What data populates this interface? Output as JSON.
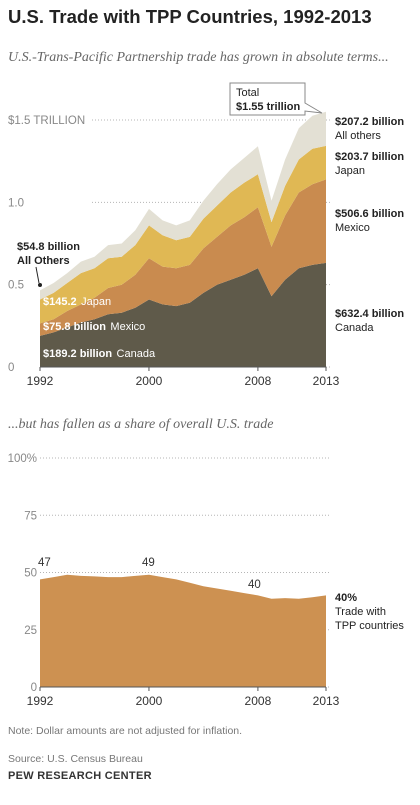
{
  "title": "U.S. Trade with TPP Countries, 1992-2013",
  "subtitle1": "U.S.-Trans-Pacific Partnership trade has grown in absolute terms...",
  "subtitle2": "...but has fallen as a share of overall U.S. trade",
  "note": "Note: Dollar amounts are not adjusted for inflation.",
  "source": "Source: U.S. Census Bureau",
  "brand": "PEW RESEARCH CENTER",
  "colors": {
    "canada": "#5f5a4a",
    "mexico": "#c98b4f",
    "japan": "#e0b854",
    "others": "#e3e0d4",
    "share": "#cd9151",
    "grid": "#b5b5b5"
  },
  "chart_data": [
    {
      "type": "area",
      "stacked": true,
      "x": [
        1992,
        1993,
        1994,
        1995,
        1996,
        1997,
        1998,
        1999,
        2000,
        2001,
        2002,
        2003,
        2004,
        2005,
        2006,
        2007,
        2008,
        2009,
        2010,
        2011,
        2012,
        2013
      ],
      "x_tick_labels": [
        "1992",
        "2000",
        "2008",
        "2013"
      ],
      "y_tick_labels": [
        "$1.5 TRILLION",
        "1.0",
        "0.5",
        "0"
      ],
      "ylim": [
        0,
        1.6
      ],
      "grid": true,
      "series": [
        {
          "name": "Canada",
          "label_value": "$189.2 billion",
          "label_name": "Canada",
          "end_value": "$632.4 billion",
          "end_name": "Canada",
          "values": [
            0.189,
            0.21,
            0.24,
            0.27,
            0.29,
            0.32,
            0.33,
            0.36,
            0.41,
            0.38,
            0.37,
            0.39,
            0.45,
            0.5,
            0.53,
            0.56,
            0.6,
            0.43,
            0.53,
            0.6,
            0.62,
            0.632
          ]
        },
        {
          "name": "Mexico",
          "label_value": "$75.8 billion",
          "label_name": "Mexico",
          "end_value": "$506.6 billion",
          "end_name": "Mexico",
          "values": [
            0.076,
            0.08,
            0.1,
            0.11,
            0.13,
            0.16,
            0.17,
            0.2,
            0.25,
            0.23,
            0.23,
            0.23,
            0.27,
            0.29,
            0.33,
            0.35,
            0.37,
            0.3,
            0.39,
            0.46,
            0.49,
            0.507
          ]
        },
        {
          "name": "Japan",
          "label_value": "$145.2",
          "label_name": "Japan",
          "end_value": "$203.7 billion",
          "end_name": "Japan",
          "values": [
            0.145,
            0.16,
            0.17,
            0.19,
            0.18,
            0.18,
            0.17,
            0.18,
            0.2,
            0.19,
            0.17,
            0.17,
            0.18,
            0.19,
            0.2,
            0.21,
            0.2,
            0.15,
            0.18,
            0.2,
            0.216,
            0.204
          ]
        },
        {
          "name": "All others",
          "label_value": "$54.8 billion",
          "label_name": "All Others",
          "end_value": "$207.2 billion",
          "end_name": "All others",
          "values": [
            0.055,
            0.06,
            0.06,
            0.07,
            0.07,
            0.08,
            0.08,
            0.09,
            0.1,
            0.09,
            0.09,
            0.1,
            0.11,
            0.13,
            0.14,
            0.15,
            0.17,
            0.13,
            0.16,
            0.19,
            0.2,
            0.207
          ]
        }
      ],
      "callout": {
        "line1": "Total",
        "line2": "$1.55 trillion"
      }
    },
    {
      "type": "area",
      "x": [
        1992,
        1993,
        1994,
        1995,
        1996,
        1997,
        1998,
        1999,
        2000,
        2001,
        2002,
        2003,
        2004,
        2005,
        2006,
        2007,
        2008,
        2009,
        2010,
        2011,
        2012,
        2013
      ],
      "x_tick_labels": [
        "1992",
        "2000",
        "2008",
        "2013"
      ],
      "y_tick_labels": [
        "100%",
        "75",
        "50",
        "25",
        "0"
      ],
      "ylim": [
        0,
        100
      ],
      "grid": true,
      "series": [
        {
          "name": "Trade with TPP countries",
          "values": [
            47,
            48,
            49,
            48.5,
            48.3,
            48,
            48,
            48.5,
            49,
            48,
            47,
            45.5,
            44,
            43,
            42,
            41,
            40,
            38.5,
            38.8,
            38.5,
            39.2,
            40
          ]
        }
      ],
      "annotations": [
        "47",
        "49",
        "40"
      ],
      "end_label": {
        "value": "40%",
        "line1": "Trade with",
        "line2": "TPP countries"
      }
    }
  ]
}
